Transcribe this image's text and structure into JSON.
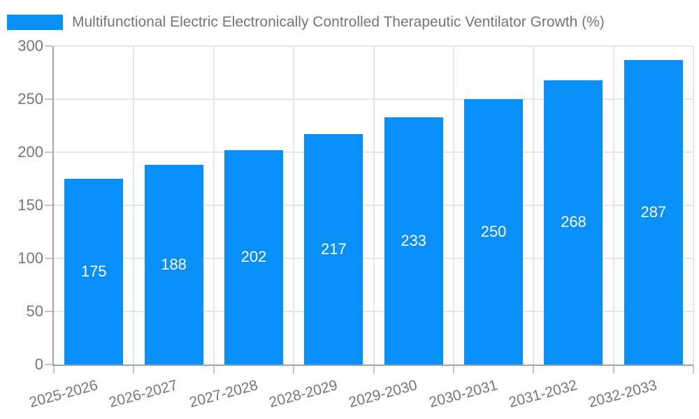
{
  "colors": {
    "bar": "#0890f8",
    "grid": "#e5e5e5",
    "axis": "#a3a3a3",
    "tick": "#c6c6c6",
    "label": "#757575",
    "value_label": "#ffffff",
    "background": "#ffffff"
  },
  "legend": {
    "label": "Multifunctional Electric Electronically Controlled Therapeutic Ventilator Growth (%)"
  },
  "chart_data": {
    "type": "bar",
    "title": "Multifunctional Electric Electronically Controlled Therapeutic Ventilator Growth (%)",
    "categories": [
      "2025-2026",
      "2026-2027",
      "2027-2028",
      "2028-2029",
      "2029-2030",
      "2030-2031",
      "2031-2032",
      "2032-2033"
    ],
    "values": [
      175,
      188,
      202,
      217,
      233,
      250,
      268,
      287
    ],
    "xlabel": "",
    "ylabel": "",
    "ylim": [
      0,
      300
    ],
    "yticks": [
      0,
      50,
      100,
      150,
      200,
      250,
      300
    ],
    "grid": true,
    "legend_position": "top-left",
    "x_tick_rotation_deg": -15,
    "value_labels": "inside-center"
  }
}
